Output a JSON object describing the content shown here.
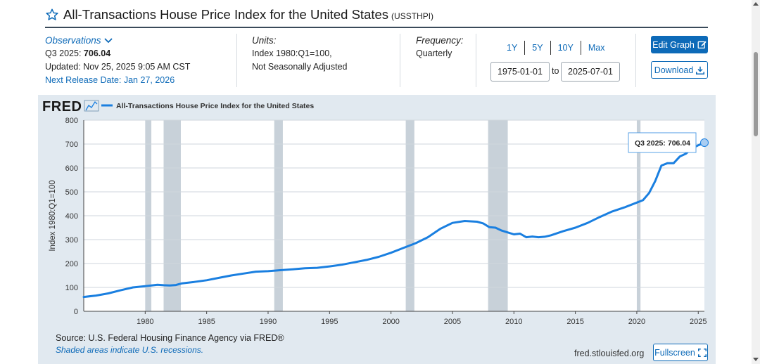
{
  "header": {
    "title": "All-Transactions House Price Index for the United States",
    "series_id": "(USSTHPI)"
  },
  "observations": {
    "label": "Observations",
    "latest_period": "Q3 2025:",
    "latest_value": "706.04",
    "updated": "Updated: Nov 25, 2025 9:05 AM CST",
    "next_release": "Next Release Date: Jan 27, 2026"
  },
  "units": {
    "label": "Units:",
    "line1": "Index 1980:Q1=100,",
    "line2": "Not Seasonally Adjusted"
  },
  "frequency": {
    "label": "Frequency:",
    "value": "Quarterly"
  },
  "range": {
    "buttons": [
      "1Y",
      "5Y",
      "10Y",
      "Max"
    ],
    "start": "1975-01-01",
    "to_label": "to",
    "end": "2025-07-01"
  },
  "actions": {
    "edit_label": "Edit Graph",
    "download_label": "Download",
    "fullscreen_label": "Fullscreen"
  },
  "footer": {
    "source": "Source: U.S. Federal Housing Finance Agency via FRED®",
    "shaded_note": "Shaded areas indicate U.S. recessions.",
    "site": "fred.stlouisfed.org"
  },
  "colors": {
    "line": "#1a7fe0",
    "recession": "#c8d1d9",
    "panel": "#e1e9f0",
    "accent": "#0d6ab8"
  },
  "chart_data": {
    "type": "line",
    "brand": "FRED",
    "legend": "All-Transactions House Price Index for the United States",
    "ylabel": "Index 1980:Q1=100",
    "ylim": [
      0,
      800
    ],
    "xlim": [
      1975.0,
      2025.5
    ],
    "y_ticks": [
      0,
      100,
      200,
      300,
      400,
      500,
      600,
      700,
      800
    ],
    "x_ticks": [
      1980,
      1985,
      1990,
      1995,
      2000,
      2005,
      2010,
      2015,
      2020,
      2025
    ],
    "grid": true,
    "recessions": [
      [
        1980.0,
        1980.5
      ],
      [
        1981.5,
        1982.9
      ],
      [
        1990.5,
        1991.2
      ],
      [
        2001.2,
        2001.9
      ],
      [
        2007.9,
        2009.5
      ],
      [
        2020.0,
        2020.3
      ]
    ],
    "tooltip": {
      "label": "Q3 2025:",
      "value": "706.04"
    },
    "series": [
      {
        "x": [
          1975.0,
          1976.0,
          1977.0,
          1978.0,
          1979.0,
          1980.0,
          1981.0,
          1981.5,
          1982.0,
          1982.5,
          1983.0,
          1984.0,
          1985.0,
          1986.0,
          1987.0,
          1988.0,
          1989.0,
          1990.0,
          1991.0,
          1992.0,
          1993.0,
          1994.0,
          1995.0,
          1996.0,
          1997.0,
          1998.0,
          1999.0,
          2000.0,
          2001.0,
          2002.0,
          2003.0,
          2004.0,
          2005.0,
          2006.0,
          2007.0,
          2007.5,
          2008.0,
          2008.5,
          2009.0,
          2009.5,
          2010.0,
          2010.5,
          2011.0,
          2011.5,
          2012.0,
          2012.5,
          2013.0,
          2014.0,
          2015.0,
          2016.0,
          2017.0,
          2018.0,
          2019.0,
          2020.0,
          2020.5,
          2021.0,
          2021.5,
          2022.0,
          2022.5,
          2023.0,
          2023.5,
          2024.0,
          2024.5,
          2025.0,
          2025.5
        ],
        "y": [
          60,
          66,
          75,
          88,
          100,
          105,
          111,
          109,
          108,
          110,
          117,
          123,
          130,
          140,
          150,
          158,
          166,
          168,
          172,
          176,
          180,
          182,
          188,
          195,
          205,
          215,
          228,
          245,
          265,
          285,
          310,
          345,
          370,
          378,
          375,
          368,
          352,
          350,
          338,
          330,
          322,
          325,
          310,
          313,
          310,
          312,
          318,
          335,
          350,
          370,
          395,
          418,
          435,
          455,
          465,
          495,
          545,
          610,
          620,
          620,
          648,
          660,
          682,
          695,
          706
        ]
      }
    ]
  }
}
